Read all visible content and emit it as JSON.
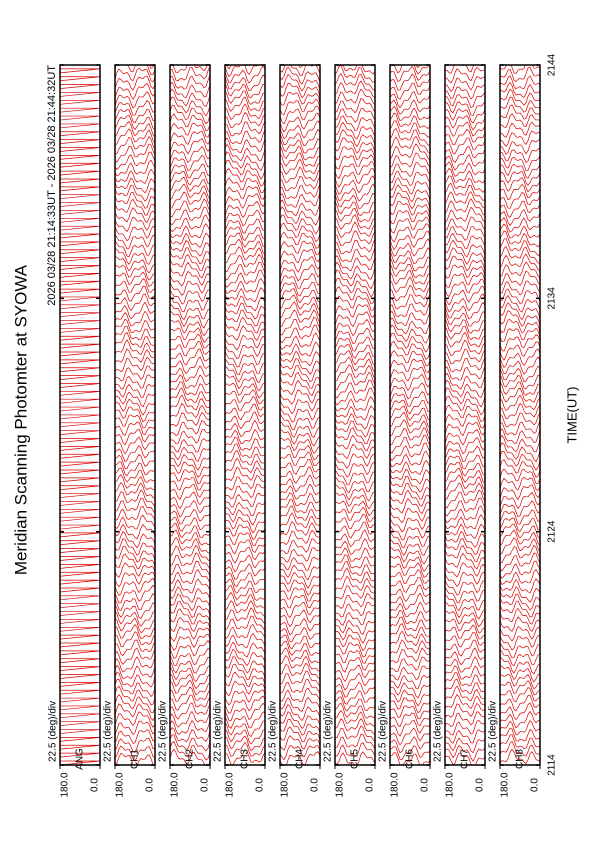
{
  "chart_data": {
    "type": "stacked-strips",
    "title": "Meridian Scanning Photomter at SYOWA",
    "subtitle": "2026 03/28 21:14:33UT - 2026 03/28 21:44:32UT",
    "x_label": "TIME(UT)",
    "xlim": [
      2114,
      2144
    ],
    "xticks": [
      2114,
      2124,
      2134,
      2144
    ],
    "color": "#dd0000",
    "panels": [
      {
        "name": "ANG",
        "scale": "22.5 (deg)/div",
        "ylim": [
          0,
          180
        ],
        "yticks": [
          {
            "value": 180,
            "label": "180.0"
          },
          {
            "value": 0,
            "label": "0.0"
          }
        ]
      },
      {
        "name": "CH1",
        "scale": "22.5 (deg)/div",
        "ylim": [
          0,
          180
        ],
        "yticks": [
          {
            "value": 180,
            "label": "180.0"
          },
          {
            "value": 0,
            "label": "0.0"
          }
        ]
      },
      {
        "name": "CH2",
        "scale": "22.5 (deg)/div",
        "ylim": [
          0,
          180
        ],
        "yticks": [
          {
            "value": 180,
            "label": "180.0"
          },
          {
            "value": 0,
            "label": "0.0"
          }
        ]
      },
      {
        "name": "CH3",
        "scale": "22.5 (deg)/div",
        "ylim": [
          0,
          180
        ],
        "yticks": [
          {
            "value": 180,
            "label": "180.0"
          },
          {
            "value": 0,
            "label": "0.0"
          }
        ]
      },
      {
        "name": "CH4",
        "scale": "22.5 (deg)/div",
        "ylim": [
          0,
          180
        ],
        "yticks": [
          {
            "value": 180,
            "label": "180.0"
          },
          {
            "value": 0,
            "label": "0.0"
          }
        ]
      },
      {
        "name": "CH5",
        "scale": "22.5 (deg)/div",
        "ylim": [
          0,
          180
        ],
        "yticks": [
          {
            "value": 180,
            "label": "180.0"
          },
          {
            "value": 0,
            "label": "0.0"
          }
        ]
      },
      {
        "name": "CH6",
        "scale": "22.5 (deg)/div",
        "ylim": [
          0,
          180
        ],
        "yticks": [
          {
            "value": 180,
            "label": "180.0"
          },
          {
            "value": 0,
            "label": "0.0"
          }
        ]
      },
      {
        "name": "CH7",
        "scale": "22.5 (deg)/div",
        "ylim": [
          0,
          180
        ],
        "yticks": [
          {
            "value": 180,
            "label": "180.0"
          },
          {
            "value": 0,
            "label": "0.0"
          }
        ]
      },
      {
        "name": "CH8",
        "scale": "22.5 (deg)/div",
        "ylim": [
          0,
          180
        ],
        "yticks": [
          {
            "value": 180,
            "label": "180.0"
          },
          {
            "value": 0,
            "label": "0.0"
          }
        ]
      }
    ]
  }
}
